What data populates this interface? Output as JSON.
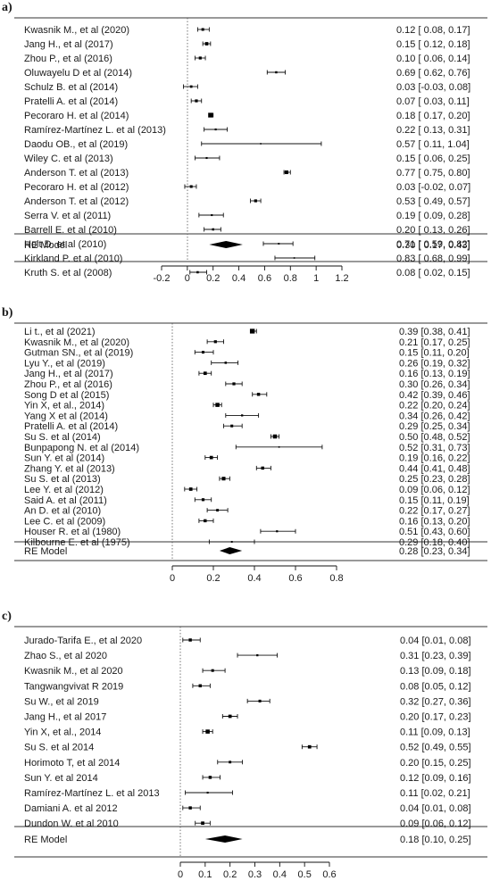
{
  "chart_data": [
    {
      "type": "forest",
      "panel_label": "a)",
      "xlim": [
        -0.2,
        1.2
      ],
      "ticks": [
        -0.2,
        0,
        0.2,
        0.4,
        0.6,
        0.8,
        1,
        1.2
      ],
      "tick_labels": [
        "-0.2",
        "0",
        "0.2",
        "0.4",
        "0.6",
        "0.8",
        "1",
        "1.2"
      ],
      "studies": [
        {
          "label": "Kwasnik M., et al (2020)",
          "est": 0.12,
          "lo": 0.08,
          "hi": 0.17,
          "ci_text": "0.12 [ 0.08, 0.17]"
        },
        {
          "label": "Jang H., et al (2017)",
          "est": 0.15,
          "lo": 0.12,
          "hi": 0.18,
          "ci_text": "0.15 [ 0.12, 0.18]"
        },
        {
          "label": "Zhou P., et al (2016)",
          "est": 0.1,
          "lo": 0.06,
          "hi": 0.14,
          "ci_text": "0.10 [ 0.06, 0.14]"
        },
        {
          "label": "Oluwayelu D et al (2014)",
          "est": 0.69,
          "lo": 0.62,
          "hi": 0.76,
          "ci_text": "0.69 [ 0.62, 0.76]"
        },
        {
          "label": "Schulz B. et al (2014)",
          "est": 0.03,
          "lo": -0.03,
          "hi": 0.08,
          "ci_text": "0.03 [-0.03, 0.08]"
        },
        {
          "label": "Pratelli A. et al (2014)",
          "est": 0.07,
          "lo": 0.03,
          "hi": 0.11,
          "ci_text": "0.07 [ 0.03, 0.11]"
        },
        {
          "label": "Pecoraro H. et al (2014)",
          "est": 0.18,
          "lo": 0.17,
          "hi": 0.2,
          "ci_text": "0.18 [ 0.17, 0.20]"
        },
        {
          "label": "Ramírez-Martínez L. et al (2013)",
          "est": 0.22,
          "lo": 0.13,
          "hi": 0.31,
          "ci_text": "0.22 [ 0.13, 0.31]"
        },
        {
          "label": "Daodu OB., et al (2019)",
          "est": 0.57,
          "lo": 0.11,
          "hi": 1.04,
          "ci_text": "0.57 [ 0.11, 1.04]"
        },
        {
          "label": "Wiley C. et al (2013)",
          "est": 0.15,
          "lo": 0.06,
          "hi": 0.25,
          "ci_text": "0.15 [ 0.06, 0.25]"
        },
        {
          "label": "Anderson T. et al (2013)",
          "est": 0.77,
          "lo": 0.75,
          "hi": 0.8,
          "ci_text": "0.77 [ 0.75, 0.80]"
        },
        {
          "label": "Pecoraro H. et al (2012)",
          "est": 0.03,
          "lo": -0.02,
          "hi": 0.07,
          "ci_text": "0.03 [-0.02, 0.07]"
        },
        {
          "label": "Anderson T. et al (2012)",
          "est": 0.53,
          "lo": 0.49,
          "hi": 0.57,
          "ci_text": "0.53 [ 0.49, 0.57]"
        },
        {
          "label": "Serra V. et al (2011)",
          "est": 0.19,
          "lo": 0.09,
          "hi": 0.28,
          "ci_text": "0.19 [ 0.09, 0.28]"
        },
        {
          "label": "Barrell E. et al (2010)",
          "est": 0.2,
          "lo": 0.13,
          "hi": 0.26,
          "ci_text": "0.20 [ 0.13, 0.26]"
        },
        {
          "label": "Holt D. et al (2010)",
          "est": 0.71,
          "lo": 0.59,
          "hi": 0.82,
          "ci_text": "0.71 [ 0.59, 0.82]"
        },
        {
          "label": "Kirkland P. et al (2010)",
          "est": 0.83,
          "lo": 0.68,
          "hi": 0.99,
          "ci_text": "0.83 [ 0.68, 0.99]"
        },
        {
          "label": "Kruth S. et al (2008)",
          "est": 0.08,
          "lo": 0.02,
          "hi": 0.15,
          "ci_text": "0.08 [ 0.02, 0.15]"
        }
      ],
      "summary": {
        "label": "RE Model",
        "est": 0.3,
        "lo": 0.17,
        "hi": 0.43,
        "ci_text": "0.30 [ 0.17, 0.43]"
      }
    },
    {
      "type": "forest",
      "panel_label": "b)",
      "xlim": [
        0,
        0.8
      ],
      "ticks": [
        0,
        0.2,
        0.4,
        0.6,
        0.8
      ],
      "tick_labels": [
        "0",
        "0.2",
        "0.4",
        "0.6",
        "0.8"
      ],
      "studies": [
        {
          "label": "Li t., et al (2021)",
          "est": 0.39,
          "lo": 0.38,
          "hi": 0.41,
          "ci_text": "0.39 [0.38, 0.41]"
        },
        {
          "label": "Kwasnik M., et al (2020)",
          "est": 0.21,
          "lo": 0.17,
          "hi": 0.25,
          "ci_text": "0.21 [0.17, 0.25]"
        },
        {
          "label": "Gutman SN., et al (2019)",
          "est": 0.15,
          "lo": 0.11,
          "hi": 0.2,
          "ci_text": "0.15 [0.11, 0.20]"
        },
        {
          "label": "Lyu Y., et al (2019)",
          "est": 0.26,
          "lo": 0.19,
          "hi": 0.32,
          "ci_text": "0.26 [0.19, 0.32]"
        },
        {
          "label": "Jang H., et al (2017)",
          "est": 0.16,
          "lo": 0.13,
          "hi": 0.19,
          "ci_text": "0.16 [0.13, 0.19]"
        },
        {
          "label": "Zhou P., et al (2016)",
          "est": 0.3,
          "lo": 0.26,
          "hi": 0.34,
          "ci_text": "0.30 [0.26, 0.34]"
        },
        {
          "label": "Song D  et al (2015)",
          "est": 0.42,
          "lo": 0.39,
          "hi": 0.46,
          "ci_text": "0.42 [0.39, 0.46]"
        },
        {
          "label": "Yin X, et al., 2014)",
          "est": 0.22,
          "lo": 0.2,
          "hi": 0.24,
          "ci_text": "0.22 [0.20, 0.24]"
        },
        {
          "label": "Yang X et al (2014)",
          "est": 0.34,
          "lo": 0.26,
          "hi": 0.42,
          "ci_text": "0.34 [0.26, 0.42]"
        },
        {
          "label": "Pratelli A. et al (2014)",
          "est": 0.29,
          "lo": 0.25,
          "hi": 0.34,
          "ci_text": "0.29 [0.25, 0.34]"
        },
        {
          "label": "Su S. et al (2014)",
          "est": 0.5,
          "lo": 0.48,
          "hi": 0.52,
          "ci_text": "0.50 [0.48, 0.52]"
        },
        {
          "label": "Bunpapong N. et al (2014)",
          "est": 0.52,
          "lo": 0.31,
          "hi": 0.73,
          "ci_text": "0.52 [0.31, 0.73]"
        },
        {
          "label": "Sun Y. et al (2014)",
          "est": 0.19,
          "lo": 0.16,
          "hi": 0.22,
          "ci_text": "0.19 [0.16, 0.22]"
        },
        {
          "label": "Zhang Y. et al (2013)",
          "est": 0.44,
          "lo": 0.41,
          "hi": 0.48,
          "ci_text": "0.44 [0.41, 0.48]"
        },
        {
          "label": "Su S. et al (2013)",
          "est": 0.25,
          "lo": 0.23,
          "hi": 0.28,
          "ci_text": "0.25 [0.23, 0.28]"
        },
        {
          "label": "Lee Y. et al (2012)",
          "est": 0.09,
          "lo": 0.06,
          "hi": 0.12,
          "ci_text": "0.09 [0.06, 0.12]"
        },
        {
          "label": "Said A. et al (2011)",
          "est": 0.15,
          "lo": 0.11,
          "hi": 0.19,
          "ci_text": "0.15 [0.11, 0.19]"
        },
        {
          "label": "An D. et al (2010)",
          "est": 0.22,
          "lo": 0.17,
          "hi": 0.27,
          "ci_text": "0.22 [0.17, 0.27]"
        },
        {
          "label": "Lee C. et al (2009)",
          "est": 0.16,
          "lo": 0.13,
          "hi": 0.2,
          "ci_text": "0.16 [0.13, 0.20]"
        },
        {
          "label": "Houser R. et al (1980)",
          "est": 0.51,
          "lo": 0.43,
          "hi": 0.6,
          "ci_text": "0.51 [0.43, 0.60]"
        },
        {
          "label": "Kilbourne E. et al (1975)",
          "est": 0.29,
          "lo": 0.18,
          "hi": 0.4,
          "ci_text": "0.29 [0.18, 0.40]"
        }
      ],
      "summary": {
        "label": "RE Model",
        "est": 0.28,
        "lo": 0.23,
        "hi": 0.34,
        "ci_text": "0.28 [0.23, 0.34]"
      }
    },
    {
      "type": "forest",
      "panel_label": "c)",
      "xlim": [
        0,
        0.6
      ],
      "ticks": [
        0,
        0.1,
        0.2,
        0.3,
        0.4,
        0.5,
        0.6
      ],
      "tick_labels": [
        "0",
        "0.1",
        "0.2",
        "0.3",
        "0.4",
        "0.5",
        "0.6"
      ],
      "studies": [
        {
          "label": "Jurado-Tarifa E., et al 2020",
          "est": 0.04,
          "lo": 0.01,
          "hi": 0.08,
          "ci_text": "0.04 [0.01, 0.08]"
        },
        {
          "label": "Zhao S., et al 2020",
          "est": 0.31,
          "lo": 0.23,
          "hi": 0.39,
          "ci_text": "0.31 [0.23, 0.39]"
        },
        {
          "label": "Kwasnik M., et al 2020",
          "est": 0.13,
          "lo": 0.09,
          "hi": 0.18,
          "ci_text": "0.13 [0.09, 0.18]"
        },
        {
          "label": "Tangwangvivat R 2019",
          "est": 0.08,
          "lo": 0.05,
          "hi": 0.12,
          "ci_text": "0.08 [0.05, 0.12]"
        },
        {
          "label": "Su W., et al 2019",
          "est": 0.32,
          "lo": 0.27,
          "hi": 0.36,
          "ci_text": "0.32 [0.27, 0.36]"
        },
        {
          "label": "Jang H., et al 2017",
          "est": 0.2,
          "lo": 0.17,
          "hi": 0.23,
          "ci_text": "0.20 [0.17, 0.23]"
        },
        {
          "label": "Yin X, et al., 2014",
          "est": 0.11,
          "lo": 0.09,
          "hi": 0.13,
          "ci_text": "0.11 [0.09, 0.13]"
        },
        {
          "label": "Su S. et al 2014",
          "est": 0.52,
          "lo": 0.49,
          "hi": 0.55,
          "ci_text": "0.52 [0.49, 0.55]"
        },
        {
          "label": "Horimoto T, et al 2014",
          "est": 0.2,
          "lo": 0.15,
          "hi": 0.25,
          "ci_text": "0.20 [0.15, 0.25]"
        },
        {
          "label": "Sun Y. et al 2014",
          "est": 0.12,
          "lo": 0.09,
          "hi": 0.16,
          "ci_text": "0.12 [0.09, 0.16]"
        },
        {
          "label": "Ramírez-Martínez L. et al 2013",
          "est": 0.11,
          "lo": 0.02,
          "hi": 0.21,
          "ci_text": "0.11 [0.02, 0.21]"
        },
        {
          "label": "Damiani A. et al 2012",
          "est": 0.04,
          "lo": 0.01,
          "hi": 0.08,
          "ci_text": "0.04 [0.01, 0.08]"
        },
        {
          "label": "Dundon W. et al 2010",
          "est": 0.09,
          "lo": 0.06,
          "hi": 0.12,
          "ci_text": "0.09 [0.06, 0.12]"
        }
      ],
      "summary": {
        "label": "RE Model",
        "est": 0.18,
        "lo": 0.1,
        "hi": 0.25,
        "ci_text": "0.18 [0.10, 0.25]"
      }
    }
  ]
}
